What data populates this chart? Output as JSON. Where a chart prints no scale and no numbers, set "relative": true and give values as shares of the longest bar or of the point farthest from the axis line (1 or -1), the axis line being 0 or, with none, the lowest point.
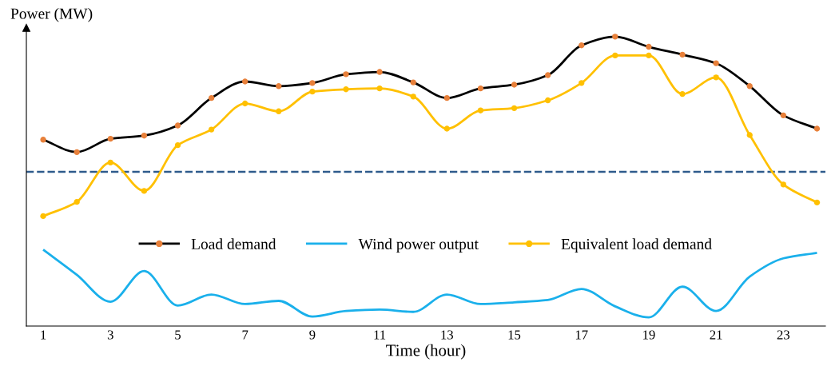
{
  "chart_data": {
    "type": "line",
    "relative": true,
    "xlabel": "Time (hour)",
    "ylabel": "Power (MW)",
    "x": [
      1,
      2,
      3,
      4,
      5,
      6,
      7,
      8,
      9,
      10,
      11,
      12,
      13,
      14,
      15,
      16,
      17,
      18,
      19,
      20,
      21,
      22,
      23,
      24
    ],
    "xlim": [
      0.5,
      24.25
    ],
    "xticks": [
      1,
      3,
      5,
      7,
      9,
      11,
      13,
      15,
      17,
      19,
      21,
      23
    ],
    "tick_labels": "x",
    "grid": false,
    "legend": "bottom",
    "line_style": "solid",
    "series": [
      {
        "name": "Load demand",
        "color": "#000000",
        "marker": "circle",
        "colors": [
          "#e8803a",
          "#e8803a",
          "#e8803a",
          "#e8803a",
          "#e8803a",
          "#e8803a",
          "#e8803a",
          "#e8803a",
          "#e8803a",
          "#e8803a",
          "#e8803a",
          "#e8803a",
          "#e8803a",
          "#e8803a",
          "#e8803a",
          "#e8803a",
          "#e8803a",
          "#e8803a",
          "#e8803a",
          "#e8803a",
          "#e8803a",
          "#e8803a",
          "#e8803a",
          "#e8803a"
        ],
        "values": [
          0.644,
          0.601,
          0.647,
          0.658,
          0.693,
          0.788,
          0.845,
          0.829,
          0.84,
          0.87,
          0.878,
          0.842,
          0.788,
          0.821,
          0.834,
          0.867,
          0.97,
          1,
          0.965,
          0.938,
          0.908,
          0.829,
          0.728,
          0.682
        ]
      },
      {
        "name": "Wind power output",
        "color": "#1ab0eb",
        "marker": "none",
        "values": [
          0.264,
          0.177,
          0.084,
          0.19,
          0.071,
          0.109,
          0.076,
          0.087,
          0.033,
          0.052,
          0.057,
          0.049,
          0.109,
          0.076,
          0.082,
          0.09,
          0.128,
          0.068,
          0.03,
          0.136,
          0.052,
          0.171,
          0.234,
          0.253
        ]
      },
      {
        "name": "Equivalent load demand",
        "color": "#ffc000",
        "marker": "circle",
        "values": [
          0.38,
          0.429,
          0.565,
          0.467,
          0.625,
          0.679,
          0.769,
          0.742,
          0.81,
          0.818,
          0.821,
          0.793,
          0.682,
          0.745,
          0.753,
          0.78,
          0.84,
          0.935,
          0.935,
          0.802,
          0.859,
          0.66,
          0.489,
          0.427
        ]
      }
    ],
    "ref_lines": [
      {
        "axis": "y",
        "value": 0.533,
        "color": "#2e5b8c",
        "line_style": "dashed"
      }
    ]
  }
}
